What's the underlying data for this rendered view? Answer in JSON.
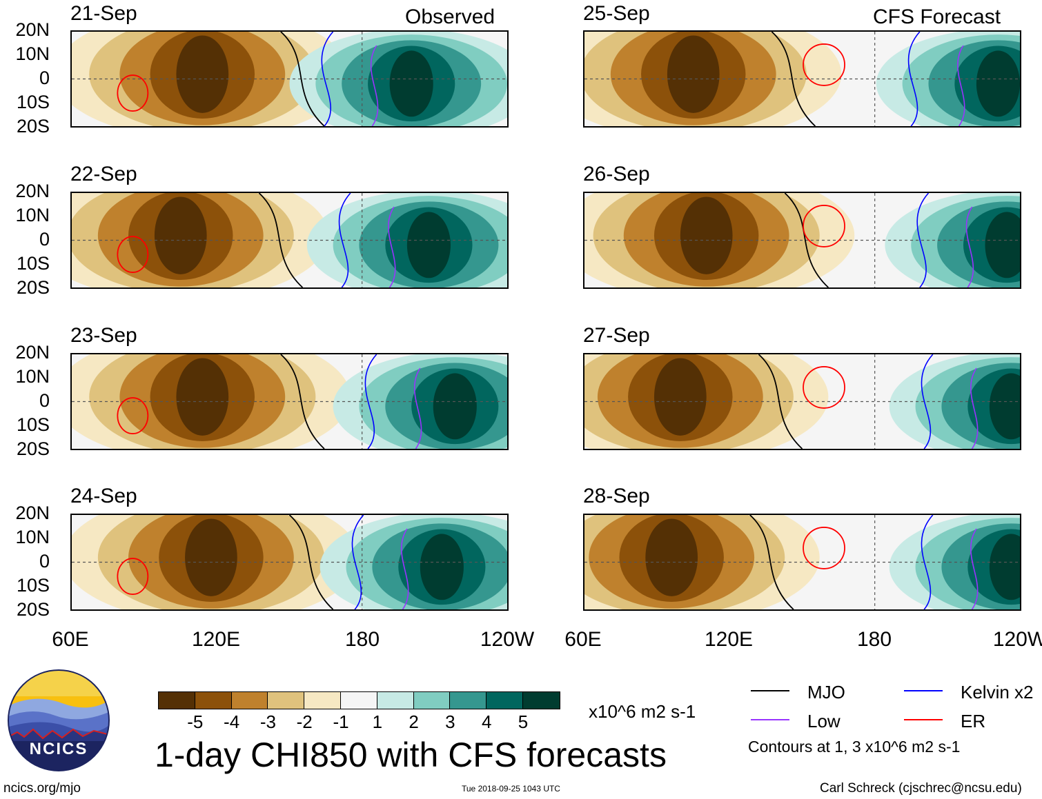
{
  "plot_title": "1-day CHI850 with CFS forecasts",
  "labels": {
    "observed": "Observed",
    "forecast": "CFS Forecast"
  },
  "left_dates": [
    "21-Sep",
    "22-Sep",
    "23-Sep",
    "24-Sep"
  ],
  "right_dates": [
    "25-Sep",
    "26-Sep",
    "27-Sep",
    "28-Sep"
  ],
  "lat_labels": [
    "20N",
    "10N",
    "0",
    "10S",
    "20S"
  ],
  "lon_labels": [
    "60E",
    "120E",
    "180",
    "120W"
  ],
  "colorbar": {
    "colors": [
      "#543005",
      "#8c510a",
      "#bf812d",
      "#dfc27d",
      "#f6e8c3",
      "#f5f5f5",
      "#c7eae5",
      "#80cdc1",
      "#35978f",
      "#01665e",
      "#003c30"
    ],
    "labels": [
      "-5",
      "-4",
      "-3",
      "-2",
      "-1",
      "1",
      "2",
      "3",
      "4",
      "5"
    ],
    "units": "x10^6 m2 s-1"
  },
  "legend": {
    "items": [
      {
        "label": "MJO",
        "color": "#000000"
      },
      {
        "label": "Kelvin x2",
        "color": "#0000ff"
      },
      {
        "label": "Low",
        "color": "#9933ff"
      },
      {
        "label": "ER",
        "color": "#ff0000"
      }
    ],
    "note": "Contours at 1, 3 x10^6 m2 s-1"
  },
  "footer": {
    "logo_text": "NCICS",
    "site": "ncics.org/mjo",
    "timestamp": "Tue 2018-09-25 1043 UTC",
    "credit": "Carl Schreck (cjschrec@ncsu.edu)"
  }
}
